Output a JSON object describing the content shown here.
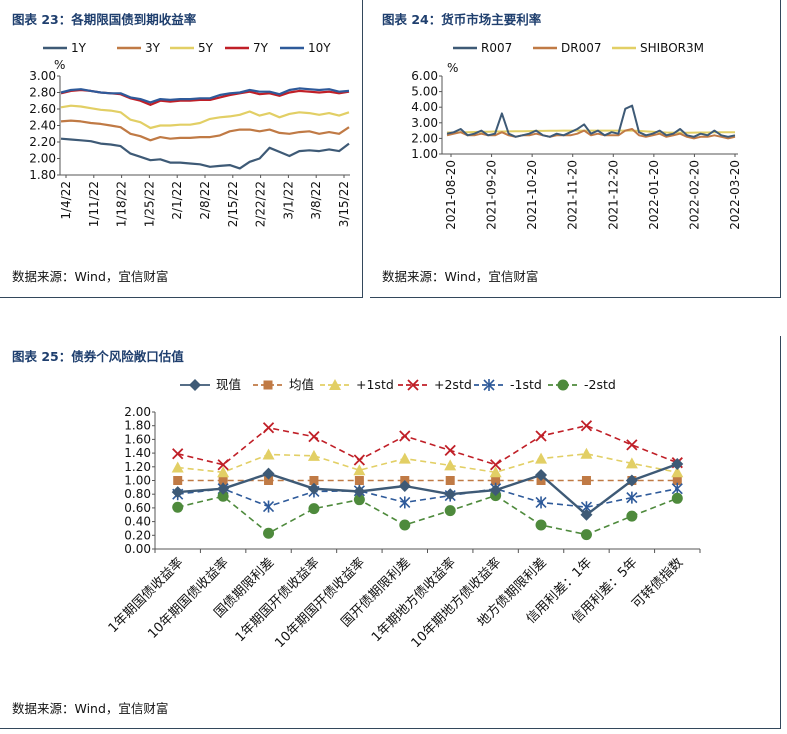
{
  "panels": {
    "p23": {
      "title": "图表 23：各期限国债到期收益率",
      "source": "数据来源：Wind，宜信财富"
    },
    "p24": {
      "title": "图表 24：货币市场主要利率",
      "source": "数据来源：Wind，宜信财富"
    },
    "p25": {
      "title": "图表 25：债券个风险敞口估值",
      "source": "数据来源：Wind，宜信财富"
    }
  },
  "chart_data": [
    {
      "id": "p23",
      "type": "line",
      "ylabel": "%",
      "ylim": [
        1.8,
        3.0
      ],
      "yticks": [
        "3.00",
        "2.80",
        "2.60",
        "2.40",
        "2.20",
        "2.00",
        "1.80"
      ],
      "xticks": [
        "1/4/22",
        "1/11/22",
        "1/18/22",
        "1/25/22",
        "2/1/22",
        "2/8/22",
        "2/15/22",
        "2/22/22",
        "3/1/22",
        "3/8/22",
        "3/15/22"
      ],
      "legend_position": "top",
      "series": [
        {
          "name": "1Y",
          "color": "#3e5a76",
          "values": [
            2.24,
            2.23,
            2.22,
            2.21,
            2.18,
            2.17,
            2.15,
            2.06,
            2.02,
            1.98,
            1.99,
            1.95,
            1.95,
            1.94,
            1.93,
            1.9,
            1.91,
            1.92,
            1.88,
            1.96,
            2.0,
            2.13,
            2.08,
            2.03,
            2.09,
            2.1,
            2.09,
            2.11,
            2.09,
            2.18
          ]
        },
        {
          "name": "3Y",
          "color": "#c07a45",
          "values": [
            2.45,
            2.46,
            2.45,
            2.43,
            2.42,
            2.4,
            2.38,
            2.3,
            2.27,
            2.22,
            2.26,
            2.24,
            2.25,
            2.25,
            2.26,
            2.26,
            2.28,
            2.33,
            2.35,
            2.35,
            2.33,
            2.35,
            2.31,
            2.3,
            2.32,
            2.33,
            2.3,
            2.32,
            2.3,
            2.38
          ]
        },
        {
          "name": "5Y",
          "color": "#e2cf65",
          "values": [
            2.62,
            2.64,
            2.63,
            2.61,
            2.59,
            2.58,
            2.56,
            2.47,
            2.44,
            2.37,
            2.4,
            2.4,
            2.41,
            2.41,
            2.43,
            2.48,
            2.5,
            2.51,
            2.53,
            2.57,
            2.52,
            2.55,
            2.5,
            2.54,
            2.56,
            2.55,
            2.53,
            2.55,
            2.52,
            2.56
          ]
        },
        {
          "name": "7Y",
          "color": "#c01f27",
          "values": [
            2.79,
            2.82,
            2.83,
            2.82,
            2.8,
            2.79,
            2.78,
            2.73,
            2.7,
            2.65,
            2.7,
            2.69,
            2.7,
            2.7,
            2.71,
            2.71,
            2.74,
            2.77,
            2.79,
            2.81,
            2.78,
            2.79,
            2.76,
            2.8,
            2.82,
            2.81,
            2.8,
            2.81,
            2.79,
            2.81
          ]
        },
        {
          "name": "10Y",
          "color": "#2e5a9a",
          "values": [
            2.8,
            2.83,
            2.84,
            2.82,
            2.8,
            2.79,
            2.79,
            2.74,
            2.72,
            2.68,
            2.72,
            2.71,
            2.72,
            2.72,
            2.73,
            2.73,
            2.77,
            2.79,
            2.8,
            2.83,
            2.81,
            2.81,
            2.78,
            2.83,
            2.85,
            2.84,
            2.83,
            2.84,
            2.81,
            2.82
          ]
        }
      ]
    },
    {
      "id": "p24",
      "type": "line",
      "ylabel": "%",
      "ylim": [
        1.0,
        6.0
      ],
      "yticks": [
        "6.00",
        "5.00",
        "4.00",
        "3.00",
        "2.00",
        "1.00"
      ],
      "xticks": [
        "2021-08-20",
        "2021-09-20",
        "2021-10-20",
        "2021-11-20",
        "2021-12-20",
        "2022-01-20",
        "2022-02-20",
        "2022-03-20"
      ],
      "legend_position": "top",
      "series": [
        {
          "name": "R007",
          "color": "#3e5a76",
          "values": [
            2.3,
            2.4,
            2.6,
            2.2,
            2.3,
            2.5,
            2.2,
            2.3,
            3.6,
            2.3,
            2.1,
            2.2,
            2.3,
            2.5,
            2.2,
            2.1,
            2.3,
            2.2,
            2.4,
            2.6,
            2.9,
            2.3,
            2.5,
            2.2,
            2.4,
            2.3,
            3.9,
            4.1,
            2.4,
            2.2,
            2.3,
            2.5,
            2.2,
            2.3,
            2.6,
            2.2,
            2.1,
            2.3,
            2.2,
            2.5,
            2.2,
            2.1,
            2.2
          ]
        },
        {
          "name": "DR007",
          "color": "#c07a45",
          "values": [
            2.2,
            2.3,
            2.4,
            2.2,
            2.2,
            2.3,
            2.2,
            2.2,
            2.4,
            2.2,
            2.1,
            2.2,
            2.2,
            2.3,
            2.2,
            2.1,
            2.2,
            2.2,
            2.2,
            2.3,
            2.5,
            2.2,
            2.3,
            2.2,
            2.2,
            2.2,
            2.5,
            2.6,
            2.2,
            2.1,
            2.2,
            2.3,
            2.1,
            2.2,
            2.3,
            2.1,
            2.0,
            2.1,
            2.1,
            2.2,
            2.1,
            2.0,
            2.1
          ]
        },
        {
          "name": "SHIBOR3M",
          "color": "#e2cf65",
          "values": [
            2.38,
            2.38,
            2.39,
            2.4,
            2.41,
            2.42,
            2.43,
            2.44,
            2.44,
            2.45,
            2.46,
            2.46,
            2.47,
            2.48,
            2.48,
            2.49,
            2.49,
            2.5,
            2.5,
            2.5,
            2.5,
            2.5,
            2.5,
            2.5,
            2.5,
            2.5,
            2.5,
            2.5,
            2.48,
            2.45,
            2.42,
            2.4,
            2.38,
            2.37,
            2.37,
            2.36,
            2.37,
            2.38,
            2.38,
            2.39,
            2.4,
            2.4,
            2.4
          ]
        }
      ]
    },
    {
      "id": "p25",
      "type": "line",
      "ylim": [
        0.0,
        2.0
      ],
      "yticks": [
        "2.00",
        "1.80",
        "1.60",
        "1.40",
        "1.20",
        "1.00",
        "0.80",
        "0.60",
        "0.40",
        "0.20",
        "0.00"
      ],
      "categories": [
        "1年期国债收益率",
        "10年期国债收益率",
        "国债期限利差",
        "1年期国开债收益率",
        "10年期国开债收益率",
        "国开债期限利差",
        "1年期地方债收益率",
        "10年期地方债收益率",
        "地方债期限利差",
        "信用利差：1年",
        "信用利差：5年",
        "可转债指数"
      ],
      "legend_position": "top",
      "series": [
        {
          "name": "现值",
          "color": "#3e5a76",
          "marker": "diamond",
          "dash": "solid",
          "values": [
            0.83,
            0.88,
            1.1,
            0.88,
            0.84,
            0.92,
            0.8,
            0.86,
            1.08,
            0.5,
            1.0,
            1.24
          ]
        },
        {
          "name": "均值",
          "color": "#c07a45",
          "marker": "square",
          "dash": "dash",
          "values": [
            1.0,
            1.0,
            1.0,
            1.0,
            1.0,
            1.0,
            1.0,
            1.0,
            1.0,
            1.0,
            1.0,
            1.0
          ]
        },
        {
          "name": "+1std",
          "color": "#e2cf65",
          "marker": "triangle",
          "dash": "dash",
          "values": [
            1.19,
            1.12,
            1.38,
            1.36,
            1.15,
            1.32,
            1.22,
            1.12,
            1.32,
            1.39,
            1.25,
            1.12
          ]
        },
        {
          "name": "+2std",
          "color": "#c01f27",
          "marker": "x",
          "dash": "dash",
          "values": [
            1.39,
            1.23,
            1.77,
            1.64,
            1.3,
            1.65,
            1.44,
            1.23,
            1.65,
            1.8,
            1.52,
            1.26
          ]
        },
        {
          "name": "-1std",
          "color": "#2e5a9a",
          "marker": "star",
          "dash": "dash",
          "values": [
            0.8,
            0.88,
            0.62,
            0.84,
            0.85,
            0.68,
            0.78,
            0.88,
            0.68,
            0.61,
            0.75,
            0.88
          ]
        },
        {
          "name": "-2std",
          "color": "#4e8a3c",
          "marker": "circle",
          "dash": "dash",
          "values": [
            0.61,
            0.77,
            0.23,
            0.59,
            0.72,
            0.35,
            0.56,
            0.78,
            0.35,
            0.21,
            0.48,
            0.74
          ]
        }
      ]
    }
  ]
}
